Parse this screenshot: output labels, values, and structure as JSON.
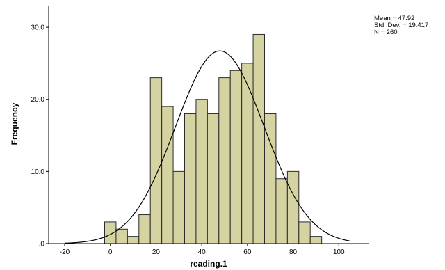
{
  "chart_data": {
    "type": "bar",
    "subtype": "histogram",
    "xlabel": "reading.1",
    "ylabel": "Frequency",
    "bin_width": 5,
    "bins": [
      {
        "start": -2.5,
        "end": 2.5,
        "count": 3
      },
      {
        "start": 2.5,
        "end": 7.5,
        "count": 2
      },
      {
        "start": 7.5,
        "end": 12.5,
        "count": 1
      },
      {
        "start": 12.5,
        "end": 17.5,
        "count": 4
      },
      {
        "start": 17.5,
        "end": 22.5,
        "count": 23
      },
      {
        "start": 22.5,
        "end": 27.5,
        "count": 19
      },
      {
        "start": 27.5,
        "end": 32.5,
        "count": 10
      },
      {
        "start": 32.5,
        "end": 37.5,
        "count": 18
      },
      {
        "start": 37.5,
        "end": 42.5,
        "count": 20
      },
      {
        "start": 42.5,
        "end": 47.5,
        "count": 18
      },
      {
        "start": 47.5,
        "end": 52.5,
        "count": 23
      },
      {
        "start": 52.5,
        "end": 57.5,
        "count": 24
      },
      {
        "start": 57.5,
        "end": 62.5,
        "count": 25
      },
      {
        "start": 62.5,
        "end": 67.5,
        "count": 29
      },
      {
        "start": 67.5,
        "end": 72.5,
        "count": 18
      },
      {
        "start": 72.5,
        "end": 77.5,
        "count": 9
      },
      {
        "start": 77.5,
        "end": 82.5,
        "count": 10
      },
      {
        "start": 82.5,
        "end": 87.5,
        "count": 3
      },
      {
        "start": 87.5,
        "end": 92.5,
        "count": 1
      }
    ],
    "xlim": [
      -27,
      113
    ],
    "ylim": [
      0,
      33
    ],
    "xticks": [
      -20,
      0,
      20,
      40,
      60,
      80,
      100
    ],
    "xtick_labels": [
      "-20",
      "0",
      "20",
      "40",
      "60",
      "80",
      "100"
    ],
    "yticks": [
      0,
      10,
      20,
      30
    ],
    "ytick_labels": [
      ".0",
      "10.0",
      "20.0",
      "30.0"
    ],
    "normal_curve": {
      "mean": 47.92,
      "sd": 19.417,
      "n": 260
    },
    "stats_text": [
      "Mean = 47.92",
      "Std. Dev. = 19.417",
      "N = 260"
    ],
    "colors": {
      "bar_fill": "#d6d3a3",
      "bar_stroke": "#2b2b2b",
      "curve": "#000000",
      "axis": "#000000"
    },
    "grid": false
  }
}
